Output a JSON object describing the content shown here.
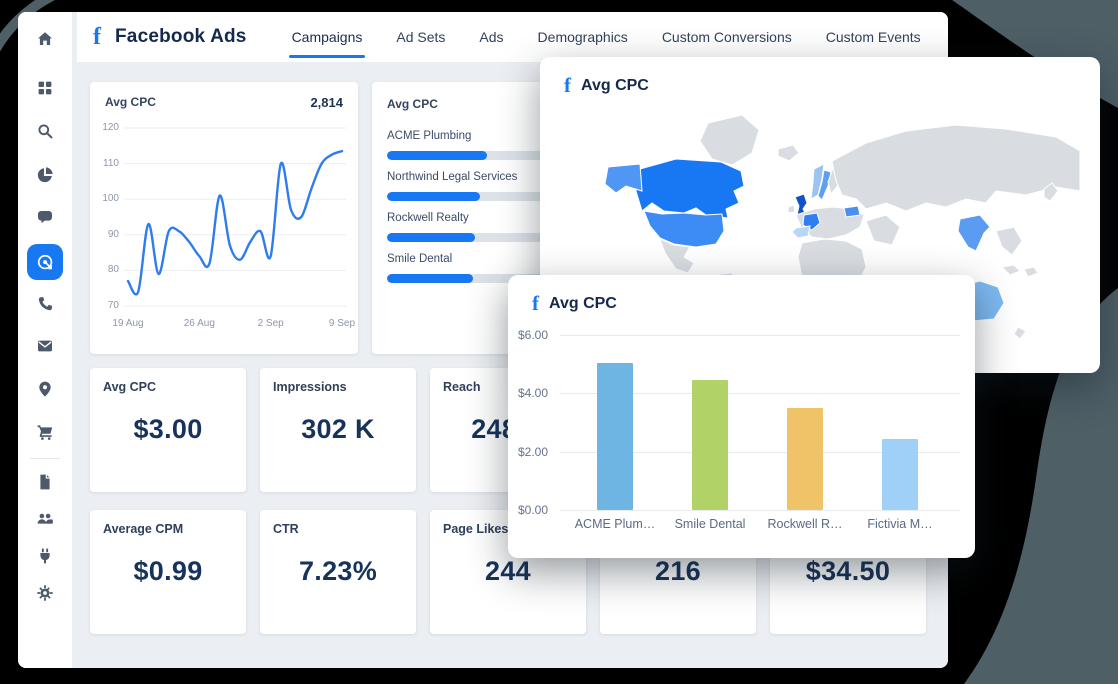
{
  "header": {
    "brand": "Facebook Ads",
    "tabs": [
      {
        "label": "Campaigns",
        "active": true
      },
      {
        "label": "Ad Sets",
        "active": false
      },
      {
        "label": "Ads",
        "active": false
      },
      {
        "label": "Demographics",
        "active": false
      },
      {
        "label": "Custom Conversions",
        "active": false
      },
      {
        "label": "Custom Events",
        "active": false
      }
    ]
  },
  "sidebar": {
    "items": [
      "home",
      "apps-grid",
      "search",
      "pie-chart",
      "chat",
      "ad-target",
      "phone",
      "mail",
      "location",
      "cart",
      "document",
      "users",
      "plug",
      "settings"
    ],
    "active_item": "ad-target",
    "active_color": "#1778f2",
    "icon_color": "#4e5a6b"
  },
  "line_chart_card": {
    "title": "Avg CPC",
    "total": "2,814",
    "chart_data": {
      "type": "line",
      "line_color": "#2e7cf0",
      "y_ticks": [
        120,
        110,
        100,
        90,
        80,
        70
      ],
      "ylim": [
        70,
        120
      ],
      "x_ticks": [
        "19 Aug",
        "26 Aug",
        "2 Sep",
        "9 Sep"
      ],
      "x_tick_indices": [
        0,
        7,
        14,
        21
      ],
      "values": [
        77,
        74,
        93,
        79,
        91,
        91,
        88,
        84,
        82,
        101,
        87,
        83,
        88,
        91,
        84,
        110,
        97,
        95,
        103,
        110,
        112.5,
        113.5
      ]
    }
  },
  "hbar_card": {
    "title": "Avg CPC",
    "chart_data": {
      "type": "bar",
      "orientation": "horizontal",
      "fill_color": "#1877f2",
      "track_color": "#dde2e9",
      "categories": [
        "ACME Plumbing",
        "Northwind Legal Services",
        "Rockwell Realty",
        "Smile Dental"
      ],
      "values_pct": [
        42,
        39,
        37,
        36
      ]
    }
  },
  "map_card": {
    "title": "Avg CPC",
    "land_color": "#d9dde2",
    "colors": {
      "canada": "#1877f2",
      "usa": "#3d8bf4",
      "alaska": "#5096f4",
      "uk": "#0f52c7",
      "france": "#2f7ef2",
      "spain": "#b9d5f8",
      "norway": "#9cc4f2",
      "sweden": "#5d9ff0",
      "poland": "#4a90f0",
      "india": "#5b9cf2",
      "australia": "#7db9f0"
    }
  },
  "overlay_bar_card": {
    "title": "Avg CPC",
    "chart_data": {
      "type": "bar",
      "y_labels": [
        "$6.00",
        "$4.00",
        "$2.00",
        "$0.00"
      ],
      "ylim": [
        0,
        6
      ],
      "categories": [
        "ACME Plum…",
        "Smile Dental",
        "Rockwell R…",
        "Fictivia M…"
      ],
      "values": [
        5.05,
        4.45,
        3.5,
        2.45
      ],
      "bar_colors": [
        "#6fb5e3",
        "#b1d266",
        "#f0c368",
        "#9fd0f7"
      ]
    }
  },
  "kpi": {
    "rows": [
      [
        {
          "label": "Avg CPC",
          "value": "$3.00"
        },
        {
          "label": "Impressions",
          "value": "302 K"
        },
        {
          "label": "Reach",
          "value": "248 K"
        },
        {
          "label": "",
          "value": ""
        },
        {
          "label": "",
          "value": ""
        }
      ],
      [
        {
          "label": "Average CPM",
          "value": "$0.99"
        },
        {
          "label": "CTR",
          "value": "7.23%"
        },
        {
          "label": "Page Likes",
          "value": "244"
        },
        {
          "label": "",
          "value": "216"
        },
        {
          "label": "",
          "value": "$34.50"
        }
      ]
    ]
  },
  "colors": {
    "background": "#000000",
    "decor_slate": "#4e5f66",
    "window_bg": "#ffffff",
    "content_bg": "#ebeef2",
    "accent_blue": "#1877f2",
    "value_text": "#17335b"
  }
}
